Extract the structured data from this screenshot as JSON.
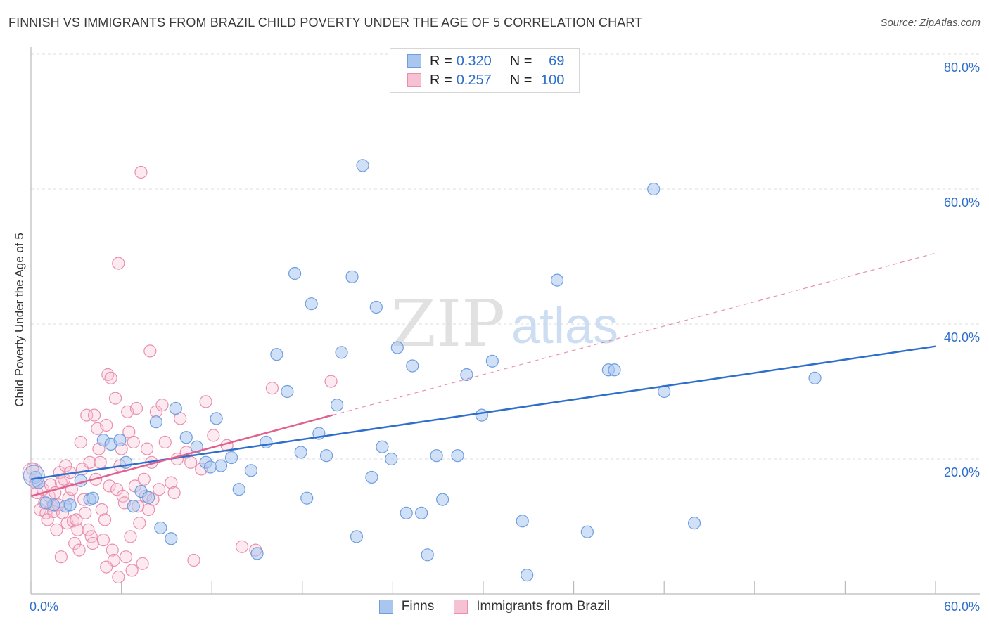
{
  "header": {
    "title": "FINNISH VS IMMIGRANTS FROM BRAZIL CHILD POVERTY UNDER THE AGE OF 5 CORRELATION CHART",
    "source": "Source: ZipAtlas.com"
  },
  "watermark": {
    "zip": "ZIP",
    "atlas": "atlas"
  },
  "stats_legend": {
    "r_label": "R =",
    "n_label": "N =",
    "finns": {
      "r": "0.320",
      "n": "69"
    },
    "brazil": {
      "r": "0.257",
      "n": "100"
    }
  },
  "bottom_legend": {
    "finns": "Finns",
    "brazil": "Immigrants from Brazil"
  },
  "colors": {
    "finns_fill": "#a9c6ef",
    "finns_stroke": "#6f9ee0",
    "finns_line": "#2f6fcc",
    "brazil_fill": "#f6c2d3",
    "brazil_stroke": "#ea8fae",
    "brazil_line": "#e0608f",
    "axis_text": "#2f6fcc",
    "grid": "#dddddd"
  },
  "chart_data": {
    "type": "scatter",
    "title": "FINNISH VS IMMIGRANTS FROM BRAZIL CHILD POVERTY UNDER THE AGE OF 5 CORRELATION CHART",
    "xlabel": "",
    "ylabel": "Child Poverty Under the Age of 5",
    "xlim": [
      0,
      60
    ],
    "ylim": [
      0,
      80
    ],
    "x_tick_labels": [
      "0.0%",
      "60.0%"
    ],
    "y_ticks": [
      20,
      40,
      60,
      80
    ],
    "y_tick_labels": [
      "20.0%",
      "40.0%",
      "60.0%",
      "80.0%"
    ],
    "grid": true,
    "series": [
      {
        "name": "Finns",
        "r": 0.32,
        "n": 69,
        "trend": {
          "x": [
            0,
            60
          ],
          "y": [
            17.0,
            36.7
          ],
          "dashed_extension": false
        },
        "points": [
          [
            0.3,
            17.3
          ],
          [
            0.5,
            16.5
          ],
          [
            1.5,
            13.2
          ],
          [
            2.3,
            13.0
          ],
          [
            3.3,
            16.8
          ],
          [
            3.9,
            14.0
          ],
          [
            4.1,
            14.2
          ],
          [
            4.8,
            22.8
          ],
          [
            5.3,
            22.2
          ],
          [
            5.9,
            22.8
          ],
          [
            6.3,
            19.5
          ],
          [
            6.8,
            13.0
          ],
          [
            7.3,
            15.2
          ],
          [
            7.8,
            14.3
          ],
          [
            8.3,
            25.5
          ],
          [
            8.6,
            9.8
          ],
          [
            9.3,
            8.2
          ],
          [
            9.6,
            27.5
          ],
          [
            10.3,
            23.2
          ],
          [
            11.0,
            21.8
          ],
          [
            11.6,
            19.5
          ],
          [
            11.9,
            18.8
          ],
          [
            12.3,
            26.0
          ],
          [
            12.6,
            19.0
          ],
          [
            13.3,
            20.2
          ],
          [
            13.8,
            15.5
          ],
          [
            14.6,
            18.3
          ],
          [
            15.0,
            6.0
          ],
          [
            15.6,
            22.5
          ],
          [
            16.3,
            35.5
          ],
          [
            17.0,
            30.0
          ],
          [
            17.5,
            47.5
          ],
          [
            17.9,
            21.0
          ],
          [
            18.3,
            14.2
          ],
          [
            18.6,
            43.0
          ],
          [
            19.1,
            23.8
          ],
          [
            19.6,
            20.5
          ],
          [
            20.3,
            28.0
          ],
          [
            20.6,
            35.8
          ],
          [
            21.3,
            47.0
          ],
          [
            21.6,
            8.5
          ],
          [
            22.0,
            63.5
          ],
          [
            22.6,
            17.3
          ],
          [
            22.9,
            42.5
          ],
          [
            23.3,
            21.8
          ],
          [
            23.9,
            20.0
          ],
          [
            24.3,
            36.5
          ],
          [
            24.9,
            12.0
          ],
          [
            25.3,
            33.8
          ],
          [
            25.9,
            12.0
          ],
          [
            26.3,
            5.8
          ],
          [
            26.9,
            20.5
          ],
          [
            27.3,
            14.0
          ],
          [
            28.3,
            20.5
          ],
          [
            28.9,
            32.5
          ],
          [
            29.9,
            26.5
          ],
          [
            30.6,
            34.5
          ],
          [
            32.6,
            10.8
          ],
          [
            32.9,
            2.8
          ],
          [
            34.9,
            46.5
          ],
          [
            36.9,
            9.2
          ],
          [
            38.3,
            33.2
          ],
          [
            38.7,
            33.2
          ],
          [
            41.3,
            60.0
          ],
          [
            42.0,
            30.0
          ],
          [
            44.0,
            10.5
          ],
          [
            52.0,
            32.0
          ],
          [
            1.0,
            13.5
          ],
          [
            2.6,
            13.2
          ]
        ]
      },
      {
        "name": "Immigrants from Brazil",
        "r": 0.257,
        "n": 100,
        "trend": {
          "x": [
            0,
            20
          ],
          "y": [
            14.5,
            26.5
          ],
          "dashed_extension_to": [
            60,
            50.5
          ]
        },
        "points": [
          [
            0.1,
            18.5
          ],
          [
            0.3,
            16.5
          ],
          [
            0.4,
            15.0
          ],
          [
            0.6,
            12.5
          ],
          [
            0.8,
            15.5
          ],
          [
            0.9,
            13.5
          ],
          [
            1.0,
            12.0
          ],
          [
            1.1,
            11.0
          ],
          [
            1.2,
            14.5
          ],
          [
            1.3,
            16.2
          ],
          [
            1.4,
            13.0
          ],
          [
            1.5,
            12.2
          ],
          [
            1.6,
            15.0
          ],
          [
            1.7,
            9.5
          ],
          [
            1.8,
            13.2
          ],
          [
            1.9,
            18.0
          ],
          [
            2.0,
            16.5
          ],
          [
            2.1,
            12.0
          ],
          [
            2.2,
            17.0
          ],
          [
            2.3,
            19.0
          ],
          [
            2.4,
            10.5
          ],
          [
            2.5,
            14.2
          ],
          [
            2.6,
            18.0
          ],
          [
            2.7,
            15.5
          ],
          [
            2.8,
            10.8
          ],
          [
            2.9,
            7.5
          ],
          [
            3.0,
            11.0
          ],
          [
            3.1,
            9.5
          ],
          [
            3.2,
            6.5
          ],
          [
            3.3,
            22.5
          ],
          [
            3.4,
            18.5
          ],
          [
            3.5,
            14.0
          ],
          [
            3.6,
            12.0
          ],
          [
            3.7,
            26.5
          ],
          [
            3.8,
            9.5
          ],
          [
            3.9,
            19.5
          ],
          [
            4.0,
            8.5
          ],
          [
            4.1,
            7.5
          ],
          [
            4.2,
            26.5
          ],
          [
            4.3,
            17.0
          ],
          [
            4.4,
            24.5
          ],
          [
            4.5,
            21.5
          ],
          [
            4.6,
            19.5
          ],
          [
            4.7,
            12.5
          ],
          [
            4.8,
            8.0
          ],
          [
            4.9,
            11.0
          ],
          [
            5.0,
            25.0
          ],
          [
            5.1,
            32.5
          ],
          [
            5.2,
            16.0
          ],
          [
            5.3,
            32.0
          ],
          [
            5.4,
            6.5
          ],
          [
            5.5,
            5.0
          ],
          [
            5.6,
            29.0
          ],
          [
            5.7,
            15.5
          ],
          [
            5.8,
            49.0
          ],
          [
            5.9,
            19.0
          ],
          [
            6.0,
            21.5
          ],
          [
            6.1,
            14.5
          ],
          [
            6.2,
            13.5
          ],
          [
            6.3,
            5.5
          ],
          [
            6.4,
            27.0
          ],
          [
            6.5,
            24.0
          ],
          [
            6.6,
            8.5
          ],
          [
            6.7,
            3.5
          ],
          [
            6.8,
            22.5
          ],
          [
            6.9,
            16.0
          ],
          [
            7.0,
            27.5
          ],
          [
            7.1,
            13.0
          ],
          [
            7.2,
            10.5
          ],
          [
            7.3,
            62.5
          ],
          [
            7.4,
            4.5
          ],
          [
            7.5,
            17.0
          ],
          [
            7.6,
            14.5
          ],
          [
            7.7,
            21.5
          ],
          [
            7.8,
            12.5
          ],
          [
            7.9,
            36.0
          ],
          [
            8.0,
            19.5
          ],
          [
            8.1,
            14.0
          ],
          [
            8.3,
            27.0
          ],
          [
            8.5,
            15.5
          ],
          [
            8.7,
            28.0
          ],
          [
            8.9,
            22.5
          ],
          [
            9.3,
            16.5
          ],
          [
            9.7,
            20.0
          ],
          [
            9.9,
            26.0
          ],
          [
            10.3,
            21.0
          ],
          [
            10.8,
            5.0
          ],
          [
            11.3,
            18.5
          ],
          [
            11.6,
            28.5
          ],
          [
            12.1,
            23.5
          ],
          [
            13.0,
            22.0
          ],
          [
            14.0,
            7.0
          ],
          [
            14.9,
            6.5
          ],
          [
            16.0,
            30.5
          ],
          [
            19.9,
            31.5
          ],
          [
            10.6,
            19.5
          ],
          [
            2.0,
            5.5
          ],
          [
            5.0,
            4.0
          ],
          [
            5.8,
            2.5
          ],
          [
            9.5,
            15.0
          ]
        ]
      }
    ]
  }
}
